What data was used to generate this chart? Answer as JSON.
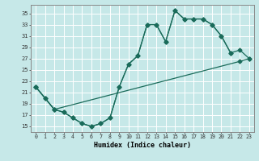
{
  "xlabel": "Humidex (Indice chaleur)",
  "background_color": "#c6e8e8",
  "grid_color": "#ffffff",
  "line_color": "#1a6b5a",
  "xlim": [
    -0.5,
    23.5
  ],
  "ylim": [
    14.0,
    36.5
  ],
  "xticks": [
    0,
    1,
    2,
    3,
    4,
    5,
    6,
    7,
    8,
    9,
    10,
    11,
    12,
    13,
    14,
    15,
    16,
    17,
    18,
    19,
    20,
    21,
    22,
    23
  ],
  "yticks": [
    15,
    17,
    19,
    21,
    23,
    25,
    27,
    29,
    31,
    33,
    35
  ],
  "line1_x": [
    0,
    1,
    2,
    3,
    4,
    5,
    6,
    7,
    8,
    9,
    10,
    11,
    12,
    13,
    14,
    15,
    16,
    17,
    18,
    19,
    20,
    21
  ],
  "line1_y": [
    22,
    20,
    18,
    17.5,
    16.5,
    15.5,
    15.0,
    15.5,
    16.5,
    22,
    26,
    27.5,
    33,
    33,
    30,
    35.5,
    34,
    34,
    34,
    33,
    31,
    28
  ],
  "line2_x": [
    0,
    1,
    2,
    3,
    4,
    5,
    6,
    7,
    8,
    9,
    10,
    11,
    12,
    13,
    14,
    15,
    16,
    17,
    18,
    19,
    20,
    21,
    22,
    23
  ],
  "line2_y": [
    22,
    20,
    18,
    17.5,
    16.5,
    15.5,
    15.0,
    15.5,
    16.5,
    22,
    26,
    27.5,
    33,
    33,
    30,
    35.5,
    34,
    34,
    34,
    33,
    31,
    28,
    28.5,
    27
  ],
  "line3_x": [
    0,
    2,
    22,
    23
  ],
  "line3_y": [
    22,
    18,
    26.5,
    27
  ]
}
